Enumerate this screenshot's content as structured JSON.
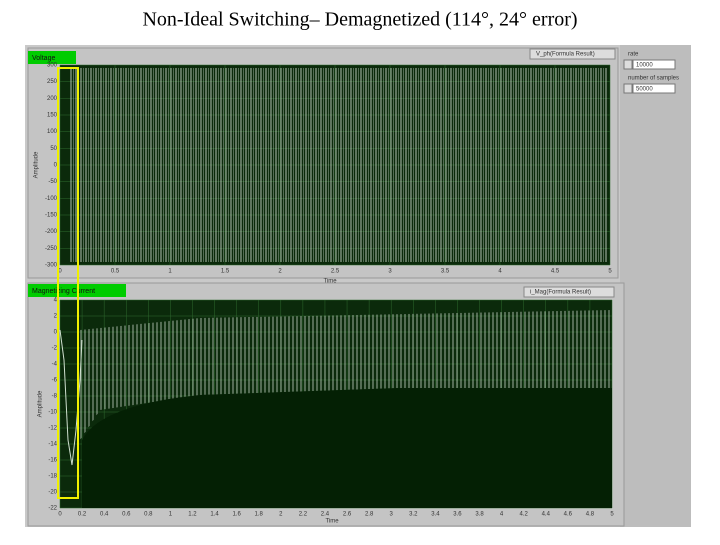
{
  "title": "Non-Ideal Switching– Demagnetized (114°, 24° error)",
  "voltage_graph": {
    "label": "Voltage",
    "plot_legend": "V_ph(Formula Result)",
    "x_axis_title": "Time",
    "y_axis_title": "Amplitude",
    "yticks": [
      300,
      250,
      200,
      150,
      100,
      50,
      0,
      -50,
      -100,
      -150,
      -200,
      -250,
      -300
    ],
    "xticks": [
      0,
      0.5,
      1,
      1.5,
      2,
      2.5,
      3,
      3.5,
      4,
      4.5,
      5
    ]
  },
  "current_graph": {
    "label": "Magnetizing Current",
    "plot_legend": "i_Mag(Formula Result)",
    "x_axis_title": "Time",
    "y_axis_title": "Amplitude",
    "yticks": [
      4,
      2,
      0,
      -2,
      -4,
      -6,
      -8,
      -10,
      -12,
      -14,
      -16,
      -18,
      -20,
      -22
    ],
    "xticks": [
      0,
      0.2,
      0.4,
      0.6,
      0.8,
      1,
      1.2,
      1.4,
      1.6,
      1.8,
      2,
      2.2,
      2.4,
      2.6,
      2.8,
      3,
      3.2,
      3.4,
      3.6,
      3.8,
      4,
      4.2,
      4.4,
      4.6,
      4.8,
      5
    ]
  },
  "controls": {
    "rate_label": "rate",
    "rate_value": "10000",
    "samples_label": "number of samples",
    "samples_value": "50000"
  }
}
